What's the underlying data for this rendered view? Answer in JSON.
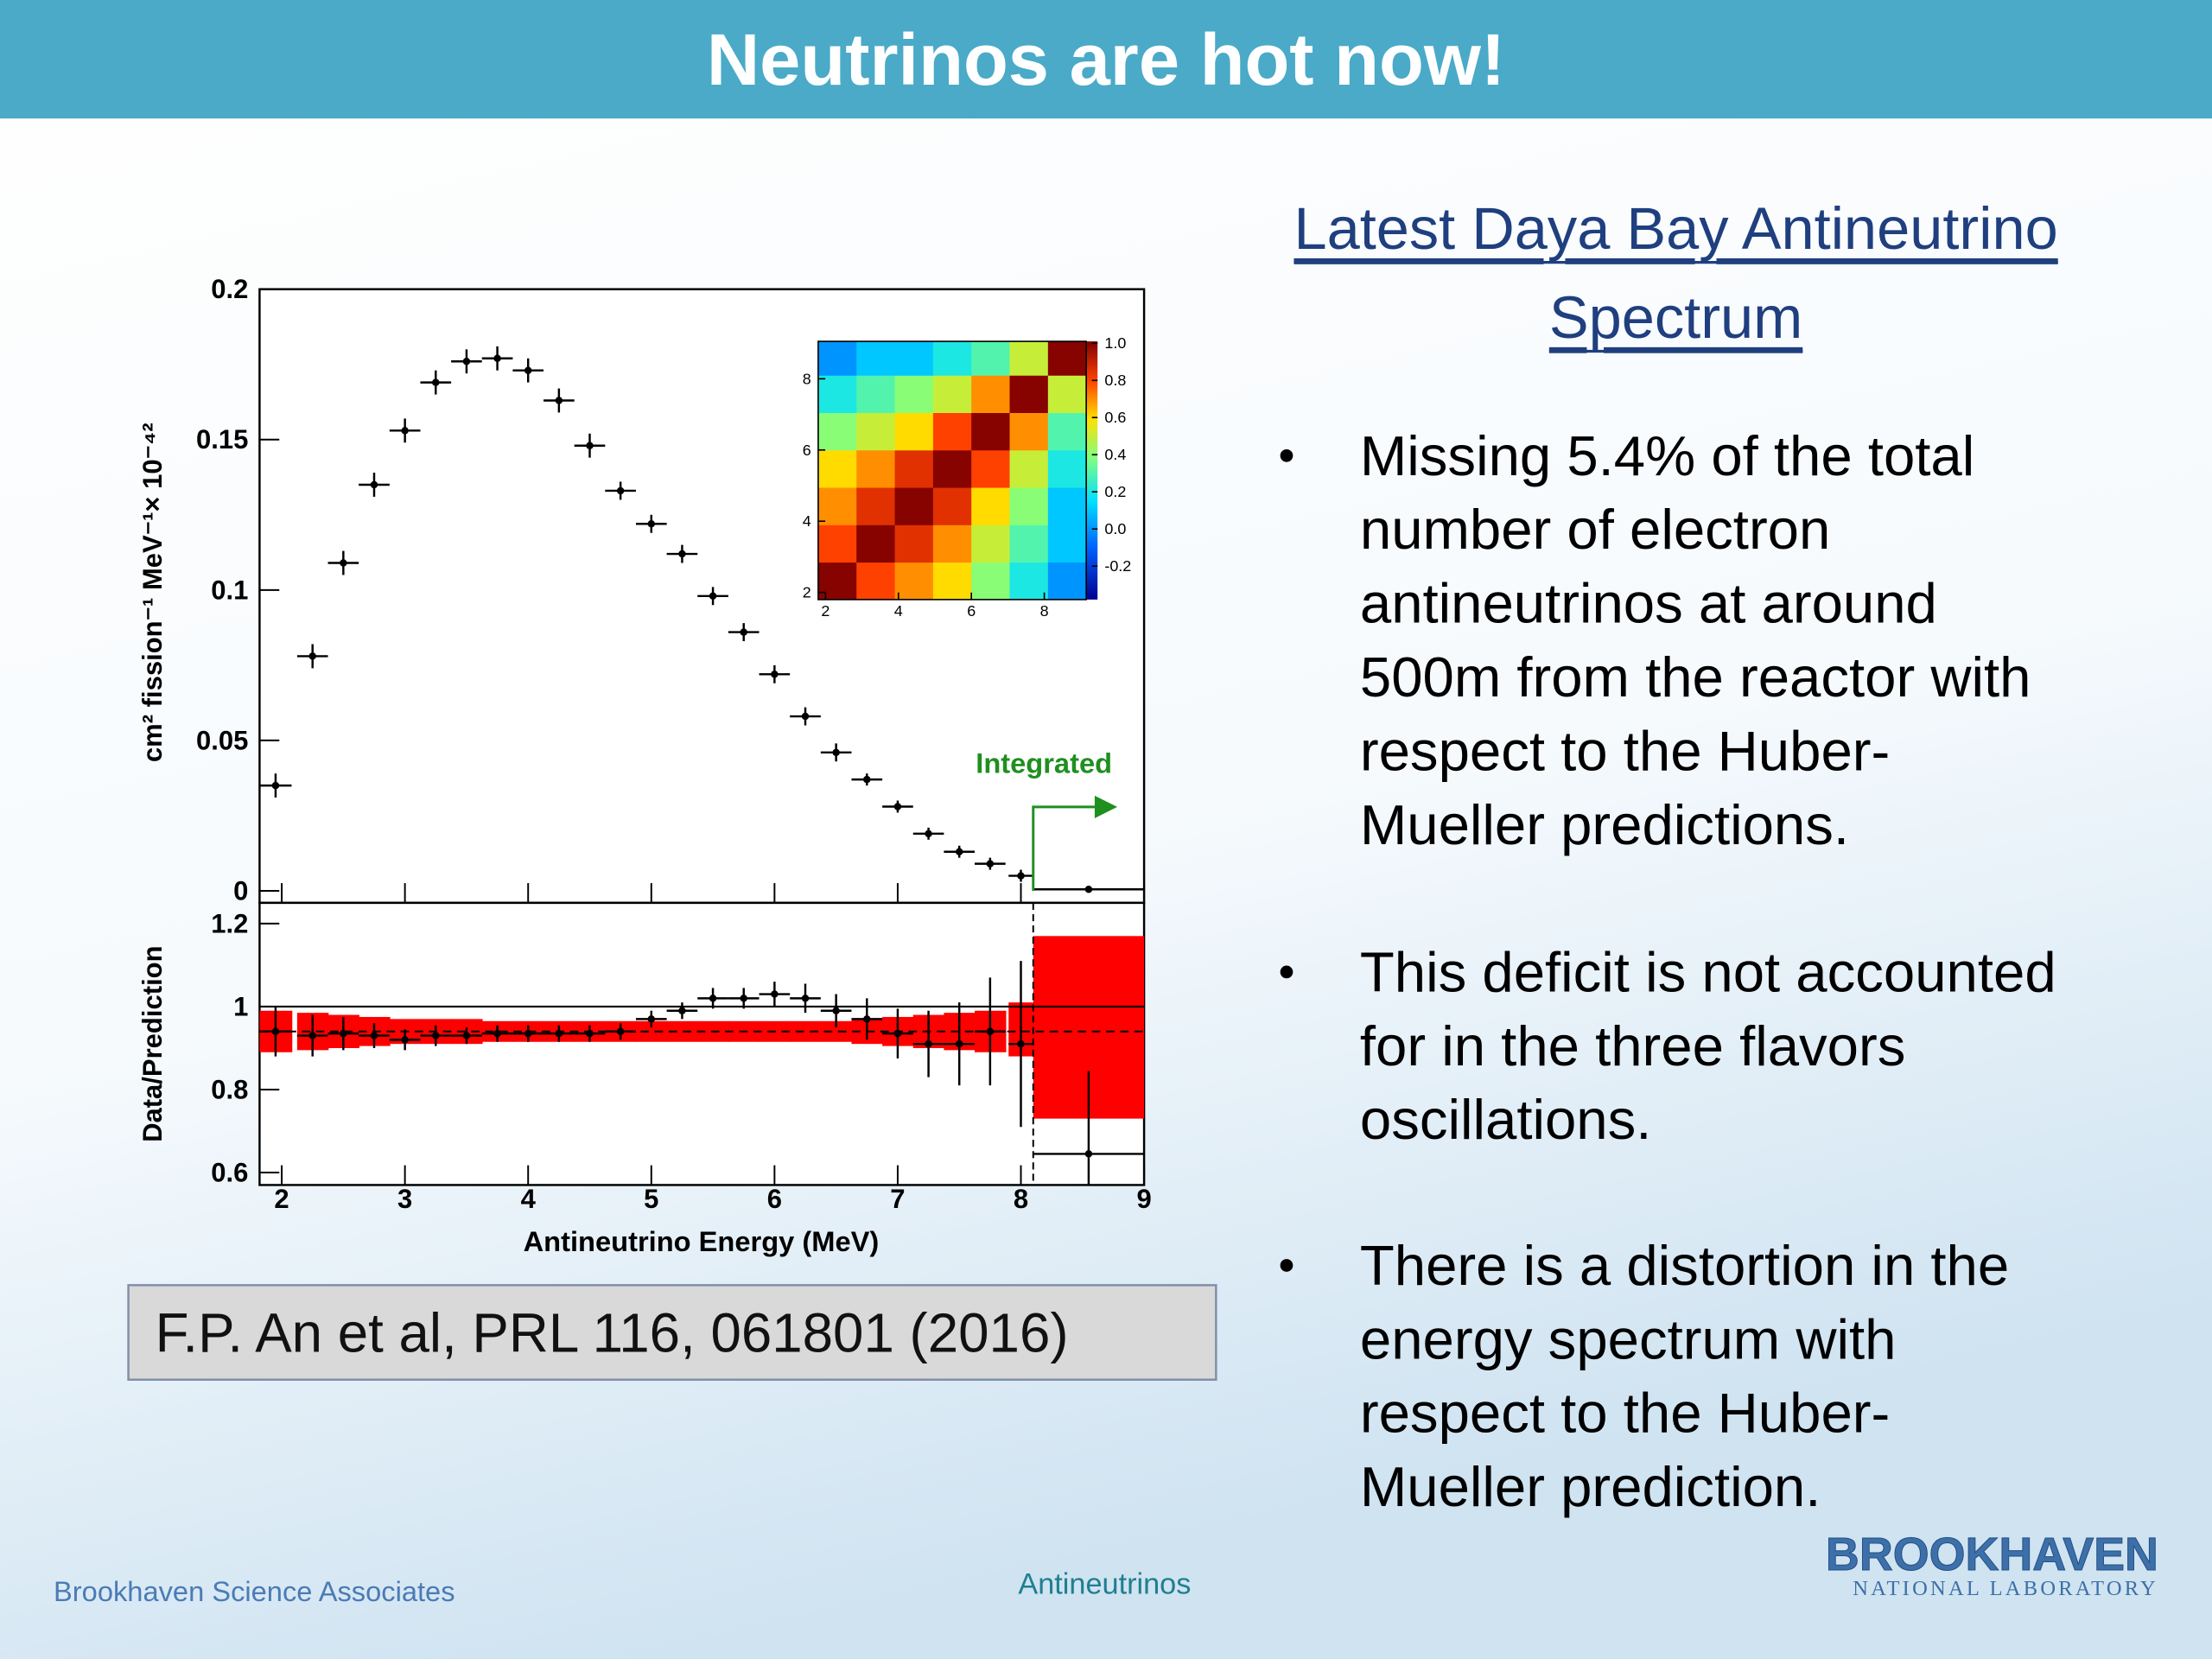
{
  "title": "Neutrinos are hot now!",
  "chart_data": [
    {
      "type": "errorbar",
      "ylabel": "cm² fission⁻¹ MeV⁻¹× 10⁻⁴²",
      "xlim": [
        1.82,
        9
      ],
      "ylim": [
        -0.004,
        0.2
      ],
      "yticks": [
        0,
        0.05,
        0.1,
        0.15,
        0.2
      ],
      "x": [
        1.95,
        2.25,
        2.5,
        2.75,
        3.0,
        3.25,
        3.5,
        3.75,
        4.0,
        4.25,
        4.5,
        4.75,
        5.0,
        5.25,
        5.5,
        5.75,
        6.0,
        6.25,
        6.5,
        6.75,
        7.0,
        7.25,
        7.5,
        7.75,
        8.0,
        8.55
      ],
      "xerr": [
        0.13,
        0.125,
        0.125,
        0.125,
        0.125,
        0.125,
        0.125,
        0.125,
        0.125,
        0.125,
        0.125,
        0.125,
        0.125,
        0.125,
        0.125,
        0.125,
        0.125,
        0.125,
        0.125,
        0.125,
        0.125,
        0.125,
        0.125,
        0.125,
        0.1,
        0.45
      ],
      "values": [
        0.035,
        0.078,
        0.109,
        0.135,
        0.153,
        0.169,
        0.176,
        0.177,
        0.173,
        0.163,
        0.148,
        0.133,
        0.122,
        0.112,
        0.098,
        0.086,
        0.072,
        0.058,
        0.046,
        0.037,
        0.028,
        0.019,
        0.013,
        0.009,
        0.005,
        0.0005
      ],
      "errors": [
        0.004,
        0.004,
        0.004,
        0.004,
        0.004,
        0.004,
        0.004,
        0.004,
        0.004,
        0.004,
        0.004,
        0.003,
        0.003,
        0.003,
        0.003,
        0.003,
        0.003,
        0.003,
        0.003,
        0.002,
        0.002,
        0.002,
        0.002,
        0.002,
        0.002,
        0.001
      ],
      "color": "#000000",
      "annotation": "Integrated",
      "annotation_color": "#1f8f1f",
      "divider_x": 8.1
    },
    {
      "type": "ratio",
      "xlabel": "Antineutrino Energy (MeV)",
      "ylabel": "Data/Prediction",
      "xlim": [
        1.82,
        9
      ],
      "xticks": [
        2,
        3,
        4,
        5,
        6,
        7,
        8,
        9
      ],
      "ylim": [
        0.57,
        1.25
      ],
      "yticks": [
        0.6,
        0.8,
        1,
        1.2
      ],
      "x": [
        1.95,
        2.25,
        2.5,
        2.75,
        3.0,
        3.25,
        3.5,
        3.75,
        4.0,
        4.25,
        4.5,
        4.75,
        5.0,
        5.25,
        5.5,
        5.75,
        6.0,
        6.25,
        6.5,
        6.75,
        7.0,
        7.25,
        7.5,
        7.75,
        8.0,
        8.55
      ],
      "xerr": [
        0.13,
        0.125,
        0.125,
        0.125,
        0.125,
        0.125,
        0.125,
        0.125,
        0.125,
        0.125,
        0.125,
        0.125,
        0.125,
        0.125,
        0.125,
        0.125,
        0.125,
        0.125,
        0.125,
        0.125,
        0.125,
        0.125,
        0.125,
        0.125,
        0.1,
        0.45
      ],
      "values": [
        0.94,
        0.93,
        0.935,
        0.93,
        0.92,
        0.93,
        0.93,
        0.935,
        0.935,
        0.935,
        0.935,
        0.94,
        0.97,
        0.99,
        1.02,
        1.02,
        1.03,
        1.02,
        0.99,
        0.97,
        0.935,
        0.91,
        0.91,
        0.94,
        0.91,
        0.645
      ],
      "errors": [
        0.06,
        0.05,
        0.04,
        0.03,
        0.025,
        0.025,
        0.02,
        0.02,
        0.02,
        0.02,
        0.02,
        0.02,
        0.02,
        0.02,
        0.025,
        0.025,
        0.03,
        0.035,
        0.04,
        0.05,
        0.06,
        0.08,
        0.1,
        0.13,
        0.2,
        0.2
      ],
      "band_low": [
        0.89,
        0.895,
        0.9,
        0.905,
        0.91,
        0.91,
        0.91,
        0.915,
        0.915,
        0.915,
        0.915,
        0.915,
        0.915,
        0.915,
        0.915,
        0.915,
        0.915,
        0.915,
        0.915,
        0.91,
        0.905,
        0.9,
        0.895,
        0.89,
        0.88,
        0.73
      ],
      "band_high": [
        0.99,
        0.985,
        0.98,
        0.975,
        0.97,
        0.97,
        0.97,
        0.965,
        0.965,
        0.965,
        0.965,
        0.965,
        0.965,
        0.965,
        0.965,
        0.965,
        0.965,
        0.965,
        0.965,
        0.97,
        0.975,
        0.98,
        0.985,
        0.99,
        1.01,
        1.17
      ],
      "band_color": "#ff0000",
      "color": "#000000",
      "reference_line": 1,
      "prediction_line": 0.94
    },
    {
      "type": "heatmap",
      "bins": [
        1.8,
        2.85,
        3.9,
        4.95,
        6.0,
        7.05,
        8.1,
        9.15
      ],
      "values": [
        [
          1,
          0.8,
          0.7,
          0.6,
          0.4,
          0.2,
          0
        ],
        [
          0.8,
          1,
          0.85,
          0.7,
          0.5,
          0.3,
          0.1
        ],
        [
          0.7,
          0.85,
          1,
          0.85,
          0.6,
          0.4,
          0.1
        ],
        [
          0.6,
          0.7,
          0.85,
          1,
          0.8,
          0.5,
          0.2
        ],
        [
          0.4,
          0.5,
          0.6,
          0.8,
          1,
          0.7,
          0.3
        ],
        [
          0.2,
          0.3,
          0.4,
          0.5,
          0.7,
          1,
          0.5
        ],
        [
          0,
          0.1,
          0.1,
          0.2,
          0.3,
          0.5,
          1
        ]
      ],
      "xlim": [
        1.8,
        9.15
      ],
      "ylim": [
        1.8,
        9.05
      ],
      "xticks": [
        2,
        4,
        6,
        8
      ],
      "yticks": [
        2,
        4,
        6,
        8
      ],
      "colorbar_lim": [
        -0.38,
        1.01
      ],
      "colorbar_ticks": [
        {
          "value": 1,
          "label": "1.0"
        },
        0.8,
        0.6,
        0.4,
        0.2,
        {
          "value": 0,
          "label": "0.0"
        },
        -0.2
      ]
    }
  ],
  "heading": [
    "Latest Daya Bay Antineutrino",
    "Spectrum"
  ],
  "bullets": [
    [
      "Missing 5.4% of the total",
      "number of electron",
      "antineutrinos at around",
      "500m from the reactor with",
      "respect to the Huber-",
      "Mueller predictions."
    ],
    [
      "This deficit is not accounted",
      "for in the three flavors",
      "oscillations."
    ],
    [
      "There is a distortion in the",
      "energy spectrum with",
      "respect to the Huber-",
      "Mueller prediction."
    ]
  ],
  "citation": "F.P. An et al,  PRL 116, 061801 (2016)",
  "footer": {
    "left": "Brookhaven Science Associates",
    "center": "Antineutrinos"
  },
  "logo": {
    "name": "BROOKHAVEN",
    "subtitle": "NATIONAL LABORATORY"
  }
}
